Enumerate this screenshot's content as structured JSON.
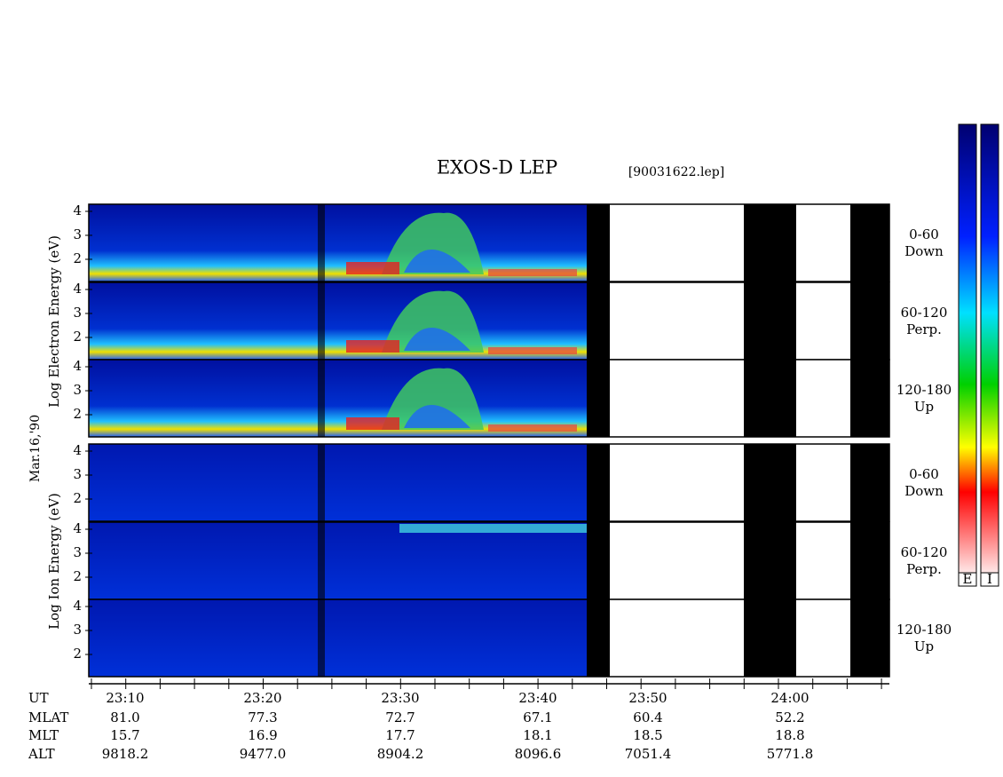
{
  "title": "EXOS-D LEP",
  "file": "[90031622.lep]",
  "date": "Mar.16,'90",
  "electron_label": "Log  Electron  Energy (eV)",
  "ion_label": "Log  Ion  Energy (eV)",
  "energy_ticks": [
    4,
    3,
    2
  ],
  "pitch_panels": [
    {
      "range": "0-60",
      "dir": "Down"
    },
    {
      "range": "60-120",
      "dir": "Perp."
    },
    {
      "range": "120-180",
      "dir": "Up"
    }
  ],
  "colorbars": [
    "E",
    "I"
  ],
  "axis": {
    "rows": [
      {
        "name": "UT",
        "values": [
          "23:10",
          "23:20",
          "23:30",
          "23:40",
          "23:50",
          "24:00"
        ]
      },
      {
        "name": "MLAT",
        "values": [
          "81.0",
          "77.3",
          "72.7",
          "67.1",
          "60.4",
          "52.2"
        ]
      },
      {
        "name": "MLT",
        "values": [
          "15.7",
          "16.9",
          "17.7",
          "18.1",
          "18.5",
          "18.8"
        ]
      },
      {
        "name": "ALT",
        "values": [
          "9818.2",
          "9477.0",
          "8904.2",
          "8096.6",
          "7051.4",
          "5771.8"
        ]
      }
    ]
  }
}
